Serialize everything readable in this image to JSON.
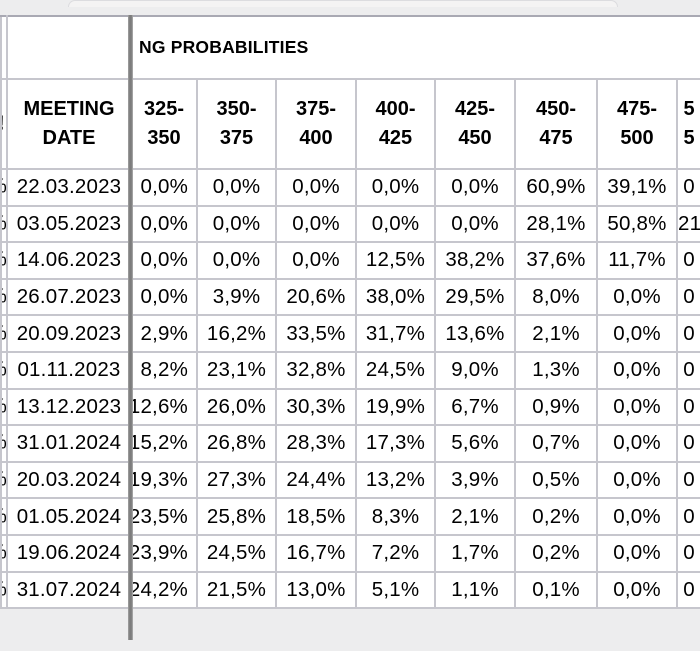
{
  "title": "NG PROBABILITIES",
  "colors": {
    "max_highlight": "#c9f3fa",
    "trail_highlight": "#f6f6d7"
  },
  "edge_fragments": {
    "header": "!",
    "row": "%"
  },
  "table": {
    "columns": [
      {
        "line1": "MEETING",
        "line2": "DATE"
      },
      {
        "line1": "325-",
        "line2": "350"
      },
      {
        "line1": "350-",
        "line2": "375"
      },
      {
        "line1": "375-",
        "line2": "400"
      },
      {
        "line1": "400-",
        "line2": "425"
      },
      {
        "line1": "425-",
        "line2": "450"
      },
      {
        "line1": "450-",
        "line2": "475"
      },
      {
        "line1": "475-",
        "line2": "500"
      },
      {
        "line1": "5",
        "line2": "5"
      }
    ],
    "rows": [
      {
        "date": "22.03.2023",
        "values": [
          {
            "text": "0,0%",
            "hl": "w"
          },
          {
            "text": "0,0%",
            "hl": "w"
          },
          {
            "text": "0,0%",
            "hl": "w"
          },
          {
            "text": "0,0%",
            "hl": "w"
          },
          {
            "text": "0,0%",
            "hl": "w"
          },
          {
            "text": "60,9%",
            "hl": "c"
          },
          {
            "text": "39,1%",
            "hl": "w"
          },
          {
            "text": "0",
            "hl": "w"
          }
        ]
      },
      {
        "date": "03.05.2023",
        "values": [
          {
            "text": "0,0%",
            "hl": "w"
          },
          {
            "text": "0,0%",
            "hl": "w"
          },
          {
            "text": "0,0%",
            "hl": "w"
          },
          {
            "text": "0,0%",
            "hl": "w"
          },
          {
            "text": "0,0%",
            "hl": "w"
          },
          {
            "text": "28,1%",
            "hl": "y"
          },
          {
            "text": "50,8%",
            "hl": "c"
          },
          {
            "text": "21",
            "hl": "w"
          }
        ]
      },
      {
        "date": "14.06.2023",
        "values": [
          {
            "text": "0,0%",
            "hl": "w"
          },
          {
            "text": "0,0%",
            "hl": "w"
          },
          {
            "text": "0,0%",
            "hl": "w"
          },
          {
            "text": "12,5%",
            "hl": "w"
          },
          {
            "text": "38,2%",
            "hl": "c"
          },
          {
            "text": "37,6%",
            "hl": "y"
          },
          {
            "text": "11,7%",
            "hl": "w"
          },
          {
            "text": "0",
            "hl": "w"
          }
        ]
      },
      {
        "date": "26.07.2023",
        "values": [
          {
            "text": "0,0%",
            "hl": "w"
          },
          {
            "text": "3,9%",
            "hl": "w"
          },
          {
            "text": "20,6%",
            "hl": "w"
          },
          {
            "text": "38,0%",
            "hl": "c"
          },
          {
            "text": "29,5%",
            "hl": "y"
          },
          {
            "text": "8,0%",
            "hl": "y"
          },
          {
            "text": "0,0%",
            "hl": "w"
          },
          {
            "text": "0",
            "hl": "w"
          }
        ]
      },
      {
        "date": "20.09.2023",
        "values": [
          {
            "text": "2,9%",
            "hl": "w"
          },
          {
            "text": "16,2%",
            "hl": "w"
          },
          {
            "text": "33,5%",
            "hl": "c"
          },
          {
            "text": "31,7%",
            "hl": "y"
          },
          {
            "text": "13,6%",
            "hl": "y"
          },
          {
            "text": "2,1%",
            "hl": "y"
          },
          {
            "text": "0,0%",
            "hl": "w"
          },
          {
            "text": "0",
            "hl": "w"
          }
        ]
      },
      {
        "date": "01.11.2023",
        "values": [
          {
            "text": "8,2%",
            "hl": "w"
          },
          {
            "text": "23,1%",
            "hl": "w"
          },
          {
            "text": "32,8%",
            "hl": "c"
          },
          {
            "text": "24,5%",
            "hl": "y"
          },
          {
            "text": "9,0%",
            "hl": "y"
          },
          {
            "text": "1,3%",
            "hl": "y"
          },
          {
            "text": "0,0%",
            "hl": "w"
          },
          {
            "text": "0",
            "hl": "w"
          }
        ]
      },
      {
        "date": "13.12.2023",
        "values": [
          {
            "text": "12,6%",
            "hl": "w"
          },
          {
            "text": "26,0%",
            "hl": "w"
          },
          {
            "text": "30,3%",
            "hl": "c"
          },
          {
            "text": "19,9%",
            "hl": "y"
          },
          {
            "text": "6,7%",
            "hl": "y"
          },
          {
            "text": "0,9%",
            "hl": "y"
          },
          {
            "text": "0,0%",
            "hl": "w"
          },
          {
            "text": "0",
            "hl": "w"
          }
        ]
      },
      {
        "date": "31.01.2024",
        "values": [
          {
            "text": "15,2%",
            "hl": "w"
          },
          {
            "text": "26,8%",
            "hl": "w"
          },
          {
            "text": "28,3%",
            "hl": "c"
          },
          {
            "text": "17,3%",
            "hl": "y"
          },
          {
            "text": "5,6%",
            "hl": "y"
          },
          {
            "text": "0,7%",
            "hl": "y"
          },
          {
            "text": "0,0%",
            "hl": "w"
          },
          {
            "text": "0",
            "hl": "w"
          }
        ]
      },
      {
        "date": "20.03.2024",
        "values": [
          {
            "text": "19,3%",
            "hl": "w"
          },
          {
            "text": "27,3%",
            "hl": "c"
          },
          {
            "text": "24,4%",
            "hl": "y"
          },
          {
            "text": "13,2%",
            "hl": "y"
          },
          {
            "text": "3,9%",
            "hl": "y"
          },
          {
            "text": "0,5%",
            "hl": "y"
          },
          {
            "text": "0,0%",
            "hl": "w"
          },
          {
            "text": "0",
            "hl": "w"
          }
        ]
      },
      {
        "date": "01.05.2024",
        "values": [
          {
            "text": "23,5%",
            "hl": "w"
          },
          {
            "text": "25,8%",
            "hl": "c"
          },
          {
            "text": "18,5%",
            "hl": "y"
          },
          {
            "text": "8,3%",
            "hl": "y"
          },
          {
            "text": "2,1%",
            "hl": "y"
          },
          {
            "text": "0,2%",
            "hl": "y"
          },
          {
            "text": "0,0%",
            "hl": "w"
          },
          {
            "text": "0",
            "hl": "w"
          }
        ]
      },
      {
        "date": "19.06.2024",
        "values": [
          {
            "text": "23,9%",
            "hl": "w"
          },
          {
            "text": "24,5%",
            "hl": "c"
          },
          {
            "text": "16,7%",
            "hl": "y"
          },
          {
            "text": "7,2%",
            "hl": "y"
          },
          {
            "text": "1,7%",
            "hl": "y"
          },
          {
            "text": "0,2%",
            "hl": "y"
          },
          {
            "text": "0,0%",
            "hl": "w"
          },
          {
            "text": "0",
            "hl": "w"
          }
        ]
      },
      {
        "date": "31.07.2024",
        "values": [
          {
            "text": "24,2%",
            "hl": "c"
          },
          {
            "text": "21,5%",
            "hl": "y"
          },
          {
            "text": "13,0%",
            "hl": "y"
          },
          {
            "text": "5,1%",
            "hl": "y"
          },
          {
            "text": "1,1%",
            "hl": "y"
          },
          {
            "text": "0,1%",
            "hl": "y"
          },
          {
            "text": "0,0%",
            "hl": "w"
          },
          {
            "text": "0",
            "hl": "w"
          }
        ]
      }
    ]
  }
}
